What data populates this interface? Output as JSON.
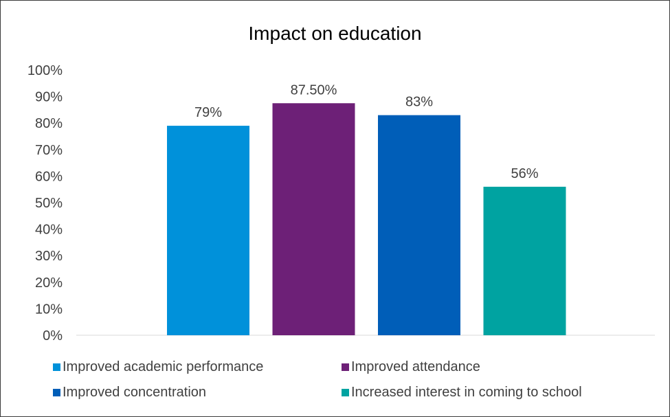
{
  "chart_data": {
    "type": "bar",
    "title": "Impact on education",
    "xlabel": "",
    "ylabel": "",
    "ylim": [
      0,
      1
    ],
    "y_ticks": [
      "0%",
      "10%",
      "20%",
      "30%",
      "40%",
      "50%",
      "60%",
      "70%",
      "80%",
      "90%",
      "100%"
    ],
    "grid": false,
    "legend_position": "bottom",
    "series": [
      {
        "name": "Improved academic performance",
        "values": [
          0.79
        ],
        "label": "79%",
        "color": "#0091DA"
      },
      {
        "name": "Improved attendance",
        "values": [
          0.875
        ],
        "label": "87.50%",
        "color": "#6D2077"
      },
      {
        "name": "Improved concentration",
        "values": [
          0.83
        ],
        "label": "83%",
        "color": "#005EB8"
      },
      {
        "name": "Increased interest in coming to school",
        "values": [
          0.56
        ],
        "label": "56%",
        "color": "#00A3A1"
      }
    ]
  }
}
